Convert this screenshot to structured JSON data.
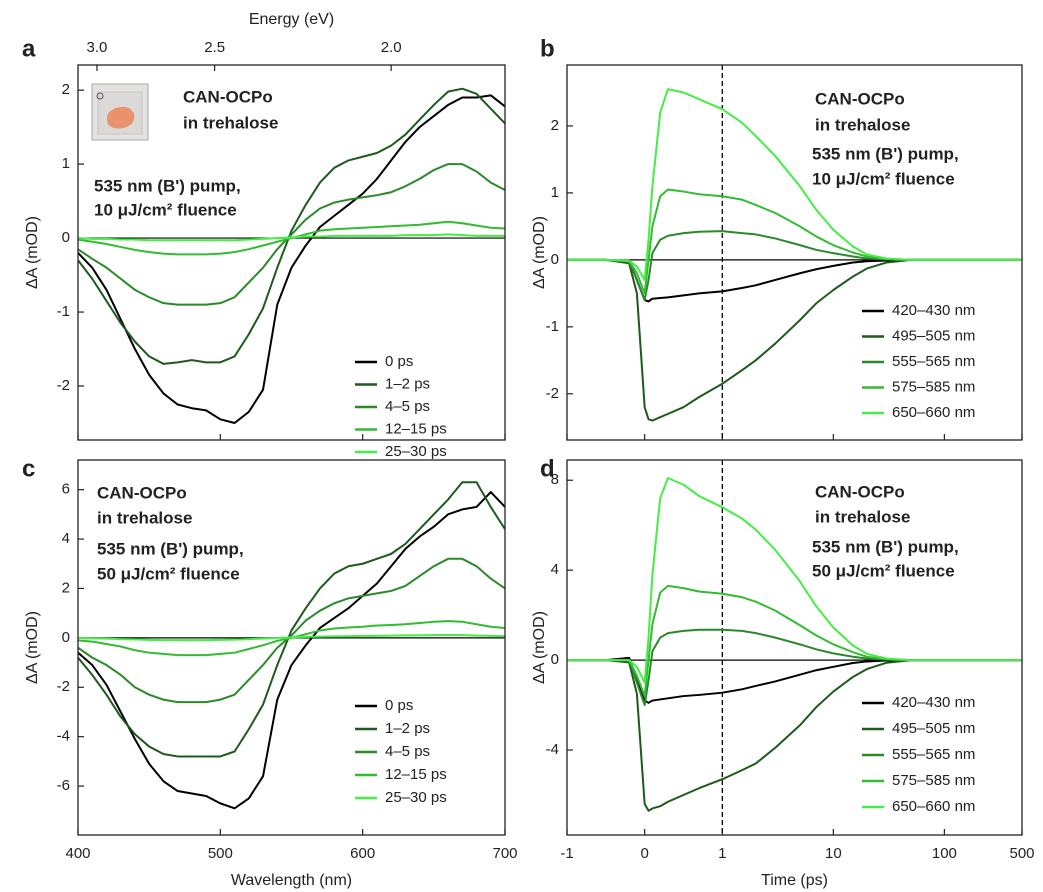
{
  "chart_data": [
    {
      "type": "line",
      "panel_label": "a",
      "ylabel": "ΔA (mOD)",
      "x2label": "Energy (eV)",
      "xlim": [
        400,
        700
      ],
      "xticks": [
        400,
        500,
        600,
        700
      ],
      "xtick_labels": false,
      "x2ticks": [
        {
          "value": 413.33,
          "label": "3.0"
        },
        {
          "value": 496,
          "label": "2.5"
        },
        {
          "value": 620,
          "label": "2.0"
        }
      ],
      "ylim": [
        -2.73,
        2.34
      ],
      "yticks": [
        -2,
        -1,
        0,
        1,
        2
      ],
      "legend": "lower right",
      "annotations": [
        {
          "text": "CAN-OCPo",
          "color": "#33cc33"
        },
        {
          "text": "in trehalose",
          "color": "#33cc33"
        },
        {
          "text": "535 nm (B') pump,",
          "color": "#000000"
        },
        {
          "text": "10 μJ/cm² fluence",
          "color": "#000000"
        }
      ],
      "x": [
        400,
        410,
        420,
        430,
        440,
        450,
        460,
        470,
        480,
        490,
        500,
        510,
        520,
        530,
        540,
        550,
        560,
        570,
        580,
        590,
        600,
        610,
        620,
        630,
        640,
        650,
        660,
        670,
        680,
        690,
        700
      ],
      "series": [
        {
          "name": "0 ps",
          "color": "#000000",
          "values": [
            -0.2,
            -0.4,
            -0.7,
            -1.1,
            -1.5,
            -1.85,
            -2.1,
            -2.25,
            -2.3,
            -2.33,
            -2.45,
            -2.5,
            -2.35,
            -2.05,
            -0.9,
            -0.4,
            -0.1,
            0.15,
            0.3,
            0.45,
            0.6,
            0.8,
            1.05,
            1.3,
            1.5,
            1.65,
            1.8,
            1.9,
            1.9,
            1.93,
            1.78
          ]
        },
        {
          "name": "1–2 ps",
          "color": "#1e5a1e",
          "values": [
            -0.3,
            -0.55,
            -0.85,
            -1.15,
            -1.4,
            -1.6,
            -1.7,
            -1.68,
            -1.65,
            -1.68,
            -1.68,
            -1.6,
            -1.3,
            -0.95,
            -0.4,
            0.1,
            0.45,
            0.75,
            0.95,
            1.05,
            1.1,
            1.15,
            1.25,
            1.4,
            1.6,
            1.8,
            1.98,
            2.02,
            1.95,
            1.75,
            1.55
          ]
        },
        {
          "name": "4–5 ps",
          "color": "#2a8a2a",
          "values": [
            -0.15,
            -0.28,
            -0.4,
            -0.55,
            -0.7,
            -0.8,
            -0.88,
            -0.9,
            -0.9,
            -0.9,
            -0.88,
            -0.8,
            -0.6,
            -0.4,
            -0.15,
            0.05,
            0.25,
            0.4,
            0.48,
            0.52,
            0.55,
            0.58,
            0.62,
            0.7,
            0.8,
            0.92,
            1.0,
            1.0,
            0.9,
            0.75,
            0.65
          ]
        },
        {
          "name": "12–15 ps",
          "color": "#33bb33",
          "values": [
            -0.02,
            -0.05,
            -0.08,
            -0.12,
            -0.16,
            -0.19,
            -0.21,
            -0.22,
            -0.22,
            -0.22,
            -0.21,
            -0.19,
            -0.15,
            -0.1,
            -0.05,
            0.0,
            0.05,
            0.1,
            0.12,
            0.13,
            0.14,
            0.15,
            0.16,
            0.17,
            0.18,
            0.2,
            0.22,
            0.2,
            0.17,
            0.14,
            0.13
          ]
        },
        {
          "name": "25–30 ps",
          "color": "#44ee44",
          "values": [
            0,
            -0.01,
            -0.01,
            -0.02,
            -0.02,
            -0.03,
            -0.03,
            -0.03,
            -0.03,
            -0.03,
            -0.03,
            -0.03,
            -0.02,
            -0.01,
            0,
            0.01,
            0.02,
            0.02,
            0.03,
            0.03,
            0.03,
            0.03,
            0.03,
            0.04,
            0.04,
            0.04,
            0.05,
            0.04,
            0.03,
            0.03,
            0.03
          ]
        }
      ]
    },
    {
      "type": "line",
      "panel_label": "b",
      "ylabel": "ΔA (mOD)",
      "xscale": "symlog",
      "linthresh": 1,
      "vline": 1,
      "xlim": [
        -1,
        500
      ],
      "xticks": [
        -1,
        0,
        1,
        10,
        100,
        500
      ],
      "xtick_labels": false,
      "ylim": [
        -2.69,
        2.91
      ],
      "yticks": [
        -2,
        -1,
        0,
        1,
        2
      ],
      "legend": "lower right",
      "annotations": [
        {
          "text": "CAN-OCPo",
          "color": "#33cc33"
        },
        {
          "text": "in trehalose",
          "color": "#33cc33"
        },
        {
          "text": "535 nm (B') pump,",
          "color": "#000000"
        },
        {
          "text": "10 μJ/cm² fluence",
          "color": "#000000"
        }
      ],
      "x": [
        -1,
        -0.5,
        -0.2,
        -0.1,
        0,
        0.05,
        0.1,
        0.2,
        0.3,
        0.5,
        0.7,
        1,
        1.5,
        2,
        3,
        5,
        7,
        10,
        15,
        20,
        30,
        50,
        100,
        200,
        500
      ],
      "series": [
        {
          "name": "420–430 nm",
          "color": "#000000",
          "values": [
            0,
            0,
            -0.02,
            -0.3,
            -0.6,
            -0.62,
            -0.58,
            -0.57,
            -0.56,
            -0.53,
            -0.5,
            -0.47,
            -0.42,
            -0.38,
            -0.3,
            -0.2,
            -0.14,
            -0.09,
            -0.04,
            -0.02,
            -0.01,
            0,
            0,
            0,
            0
          ]
        },
        {
          "name": "495–505 nm",
          "color": "#1e5a1e",
          "values": [
            0,
            0,
            -0.05,
            -0.5,
            -2.2,
            -2.38,
            -2.4,
            -2.35,
            -2.3,
            -2.2,
            -2.05,
            -1.85,
            -1.65,
            -1.5,
            -1.25,
            -0.9,
            -0.65,
            -0.45,
            -0.25,
            -0.13,
            -0.04,
            0,
            0,
            0,
            0
          ]
        },
        {
          "name": "555–565 nm",
          "color": "#2a8a2a",
          "values": [
            0,
            0,
            -0.03,
            -0.3,
            -0.6,
            -0.3,
            0.1,
            0.3,
            0.36,
            0.4,
            0.42,
            0.43,
            0.4,
            0.38,
            0.32,
            0.22,
            0.15,
            0.1,
            0.05,
            0.02,
            0.01,
            0,
            0,
            0,
            0
          ]
        },
        {
          "name": "575–585 nm",
          "color": "#33bb33",
          "values": [
            0,
            0,
            -0.02,
            -0.2,
            -0.5,
            0.0,
            0.5,
            0.95,
            1.05,
            1.02,
            0.98,
            0.95,
            0.9,
            0.82,
            0.7,
            0.5,
            0.35,
            0.22,
            0.11,
            0.05,
            0.01,
            0,
            0,
            0,
            0
          ]
        },
        {
          "name": "650–660 nm",
          "color": "#44ee44",
          "values": [
            0,
            0,
            -0.01,
            -0.1,
            -0.3,
            0.3,
            1.1,
            2.2,
            2.55,
            2.5,
            2.4,
            2.25,
            2.05,
            1.85,
            1.55,
            1.1,
            0.75,
            0.45,
            0.2,
            0.08,
            0.02,
            0,
            0,
            0,
            0
          ]
        }
      ]
    },
    {
      "type": "line",
      "panel_label": "c",
      "ylabel": "ΔA (mOD)",
      "xlabel": "Wavelength (nm)",
      "xlim": [
        400,
        700
      ],
      "xticks": [
        400,
        500,
        600,
        700
      ],
      "ylim": [
        -7.98,
        7.2
      ],
      "yticks": [
        -6,
        -4,
        -2,
        0,
        2,
        4,
        6
      ],
      "legend": "lower right",
      "annotations": [
        {
          "text": "CAN-OCPo",
          "color": "#33cc33"
        },
        {
          "text": "in trehalose",
          "color": "#33cc33"
        },
        {
          "text": "535 nm (B') pump,",
          "color": "#000000"
        },
        {
          "text": "50 μJ/cm² fluence",
          "color": "#000000"
        }
      ],
      "x": [
        400,
        410,
        420,
        430,
        440,
        450,
        460,
        470,
        480,
        490,
        500,
        510,
        520,
        530,
        540,
        550,
        560,
        570,
        580,
        590,
        600,
        610,
        620,
        630,
        640,
        650,
        660,
        670,
        680,
        690,
        700
      ],
      "series": [
        {
          "name": "0 ps",
          "color": "#000000",
          "values": [
            -0.6,
            -1.1,
            -1.9,
            -3.0,
            -4.1,
            -5.1,
            -5.8,
            -6.2,
            -6.3,
            -6.4,
            -6.7,
            -6.9,
            -6.5,
            -5.6,
            -2.5,
            -1.1,
            -0.3,
            0.4,
            0.8,
            1.2,
            1.7,
            2.2,
            2.9,
            3.6,
            4.1,
            4.5,
            5.0,
            5.2,
            5.3,
            5.9,
            5.3
          ]
        },
        {
          "name": "1–2 ps",
          "color": "#1e5a1e",
          "values": [
            -0.8,
            -1.5,
            -2.3,
            -3.2,
            -3.9,
            -4.4,
            -4.7,
            -4.8,
            -4.8,
            -4.8,
            -4.8,
            -4.6,
            -3.7,
            -2.7,
            -1.1,
            0.3,
            1.2,
            2.0,
            2.6,
            2.9,
            3.0,
            3.2,
            3.4,
            3.8,
            4.4,
            5.0,
            5.6,
            6.3,
            6.3,
            5.3,
            4.4
          ]
        },
        {
          "name": "4–5 ps",
          "color": "#2a8a2a",
          "values": [
            -0.4,
            -0.8,
            -1.1,
            -1.5,
            -2.0,
            -2.3,
            -2.5,
            -2.6,
            -2.6,
            -2.6,
            -2.5,
            -2.3,
            -1.7,
            -1.1,
            -0.4,
            0.1,
            0.7,
            1.1,
            1.4,
            1.6,
            1.7,
            1.8,
            1.9,
            2.1,
            2.5,
            2.9,
            3.2,
            3.2,
            2.9,
            2.4,
            2.0
          ]
        },
        {
          "name": "12–15 ps",
          "color": "#33bb33",
          "values": [
            -0.1,
            -0.15,
            -0.25,
            -0.35,
            -0.5,
            -0.6,
            -0.65,
            -0.7,
            -0.7,
            -0.7,
            -0.65,
            -0.6,
            -0.45,
            -0.3,
            -0.12,
            0.0,
            0.15,
            0.3,
            0.38,
            0.42,
            0.45,
            0.5,
            0.52,
            0.55,
            0.6,
            0.65,
            0.68,
            0.65,
            0.55,
            0.45,
            0.4
          ]
        },
        {
          "name": "25–30 ps",
          "color": "#44ee44",
          "values": [
            0,
            -0.02,
            -0.03,
            -0.05,
            -0.06,
            -0.08,
            -0.09,
            -0.09,
            -0.09,
            -0.09,
            -0.08,
            -0.07,
            -0.05,
            -0.03,
            0,
            0.02,
            0.04,
            0.05,
            0.06,
            0.07,
            0.08,
            0.08,
            0.09,
            0.1,
            0.1,
            0.11,
            0.12,
            0.11,
            0.09,
            0.08,
            0.07
          ]
        }
      ]
    },
    {
      "type": "line",
      "panel_label": "d",
      "ylabel": "ΔA (mOD)",
      "xlabel": "Time (ps)",
      "xscale": "symlog",
      "linthresh": 1,
      "vline": 1,
      "xlim": [
        -1,
        500
      ],
      "xticks": [
        -1,
        0,
        1,
        10,
        100,
        500
      ],
      "ylim": [
        -7.78,
        8.9
      ],
      "yticks": [
        -4,
        0,
        4,
        8
      ],
      "legend": "lower right",
      "annotations": [
        {
          "text": "CAN-OCPo",
          "color": "#33cc33"
        },
        {
          "text": "in trehalose",
          "color": "#33cc33"
        },
        {
          "text": "535 nm (B') pump,",
          "color": "#000000"
        },
        {
          "text": "50 μJ/cm² fluence",
          "color": "#000000"
        }
      ],
      "x": [
        -1,
        -0.5,
        -0.2,
        -0.1,
        0,
        0.05,
        0.1,
        0.2,
        0.3,
        0.5,
        0.7,
        1,
        1.5,
        2,
        3,
        5,
        7,
        10,
        15,
        20,
        30,
        50,
        100,
        200,
        500
      ],
      "series": [
        {
          "name": "420–430 nm",
          "color": "#000000",
          "values": [
            0,
            0,
            0.1,
            -0.9,
            -1.8,
            -1.9,
            -1.8,
            -1.75,
            -1.7,
            -1.6,
            -1.55,
            -1.45,
            -1.3,
            -1.15,
            -0.95,
            -0.65,
            -0.45,
            -0.3,
            -0.13,
            -0.06,
            -0.02,
            0,
            0,
            0,
            0
          ]
        },
        {
          "name": "495–505 nm",
          "color": "#1e5a1e",
          "values": [
            0,
            0,
            -0.1,
            -1.5,
            -6.4,
            -6.7,
            -6.6,
            -6.5,
            -6.3,
            -6.0,
            -5.7,
            -5.3,
            -4.9,
            -4.6,
            -3.9,
            -2.9,
            -2.1,
            -1.4,
            -0.75,
            -0.4,
            -0.12,
            0,
            0,
            0,
            0
          ]
        },
        {
          "name": "555–565 nm",
          "color": "#2a8a2a",
          "values": [
            0,
            0,
            0,
            -1.0,
            -2.0,
            -0.9,
            0.4,
            1.0,
            1.2,
            1.3,
            1.35,
            1.35,
            1.3,
            1.2,
            1.0,
            0.7,
            0.48,
            0.3,
            0.15,
            0.07,
            0.02,
            0,
            0,
            0,
            0
          ]
        },
        {
          "name": "575–585 nm",
          "color": "#33bb33",
          "values": [
            0,
            0,
            0,
            -0.7,
            -1.6,
            0.0,
            1.6,
            3.0,
            3.3,
            3.2,
            3.05,
            2.95,
            2.8,
            2.6,
            2.2,
            1.55,
            1.1,
            0.7,
            0.35,
            0.15,
            0.04,
            0,
            0,
            0,
            0
          ]
        },
        {
          "name": "650–660 nm",
          "color": "#44ee44",
          "values": [
            0,
            0,
            0,
            -0.3,
            -1.0,
            1.0,
            3.8,
            7.2,
            8.1,
            7.8,
            7.3,
            6.8,
            6.3,
            5.8,
            4.9,
            3.5,
            2.4,
            1.45,
            0.65,
            0.28,
            0.07,
            0,
            0,
            0,
            0
          ]
        }
      ]
    }
  ]
}
